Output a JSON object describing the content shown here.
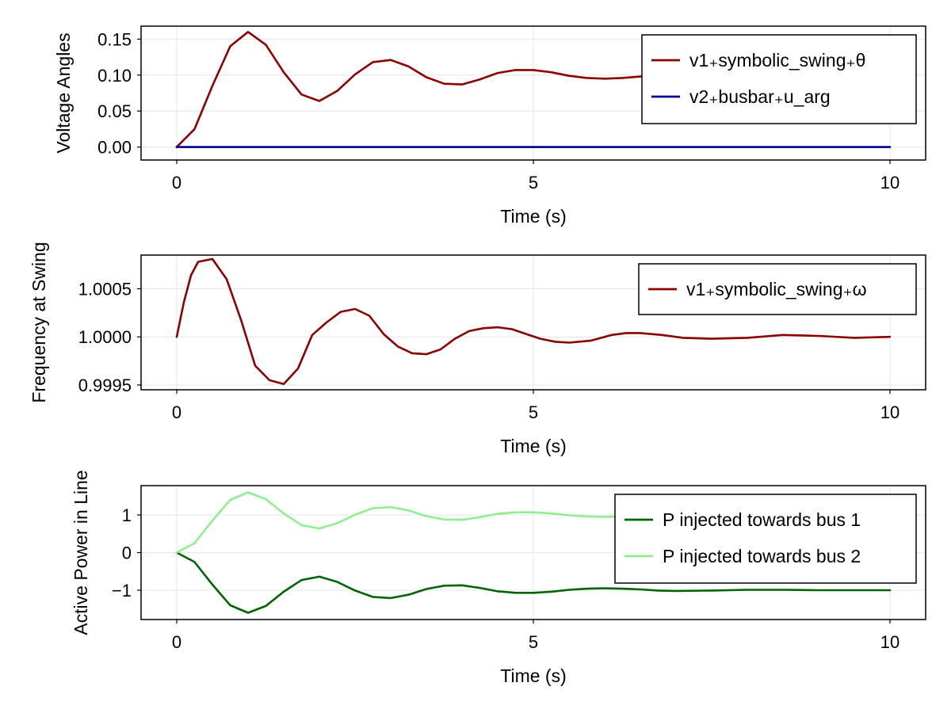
{
  "chart_data": [
    {
      "type": "line",
      "xlabel": "Time (s)",
      "ylabel": "Voltage Angles",
      "xlim": [
        -0.5,
        10.5
      ],
      "ylim": [
        -0.018,
        0.168
      ],
      "xticks": [
        0,
        5,
        10
      ],
      "xtick_labels": [
        "0",
        "5",
        "10"
      ],
      "yticks": [
        0.0,
        0.05,
        0.1,
        0.15
      ],
      "ytick_labels": [
        "0.00",
        "0.05",
        "0.10",
        "0.15"
      ],
      "grid": true,
      "legend_position": "top-right",
      "series": [
        {
          "name": "v1₊symbolic_swing₊θ",
          "color": "#8b0000",
          "x": [
            0,
            0.25,
            0.5,
            0.75,
            1.0,
            1.25,
            1.5,
            1.75,
            2.0,
            2.25,
            2.5,
            2.75,
            3.0,
            3.25,
            3.5,
            3.75,
            4.0,
            4.25,
            4.5,
            4.75,
            5.0,
            5.25,
            5.5,
            5.75,
            6.0,
            6.25,
            6.5,
            6.75,
            7.0,
            7.5,
            8.0,
            8.5,
            9.0,
            9.5,
            10.0
          ],
          "y": [
            0.0,
            0.025,
            0.085,
            0.14,
            0.16,
            0.142,
            0.104,
            0.073,
            0.064,
            0.078,
            0.101,
            0.118,
            0.121,
            0.112,
            0.097,
            0.088,
            0.087,
            0.094,
            0.103,
            0.107,
            0.107,
            0.104,
            0.099,
            0.096,
            0.095,
            0.096,
            0.098,
            0.101,
            0.102,
            0.101,
            0.099,
            0.099,
            0.1,
            0.1,
            0.1
          ]
        },
        {
          "name": "v2₊busbar₊u_arg",
          "color": "#00008b",
          "x": [
            0,
            10
          ],
          "y": [
            0.0,
            0.0
          ]
        }
      ]
    },
    {
      "type": "line",
      "xlabel": "Time (s)",
      "ylabel": "Frequency at Swing",
      "xlim": [
        -0.5,
        10.5
      ],
      "ylim": [
        0.99945,
        1.00085
      ],
      "xticks": [
        0,
        5,
        10
      ],
      "xtick_labels": [
        "0",
        "5",
        "10"
      ],
      "yticks": [
        0.9995,
        1.0,
        1.0005
      ],
      "ytick_labels": [
        "0.9995",
        "1.0000",
        "1.0005"
      ],
      "grid": true,
      "legend_position": "top-right",
      "series": [
        {
          "name": "v1₊symbolic_swing₊ω",
          "color": "#8b0000",
          "x": [
            0,
            0.1,
            0.2,
            0.3,
            0.5,
            0.7,
            0.9,
            1.1,
            1.3,
            1.5,
            1.7,
            1.9,
            2.1,
            2.3,
            2.5,
            2.7,
            2.9,
            3.1,
            3.3,
            3.5,
            3.7,
            3.9,
            4.1,
            4.3,
            4.5,
            4.7,
            4.9,
            5.1,
            5.3,
            5.5,
            5.8,
            6.1,
            6.3,
            6.5,
            6.8,
            7.1,
            7.5,
            8.0,
            8.5,
            9.0,
            9.5,
            10.0
          ],
          "y": [
            1.0,
            1.00036,
            1.00064,
            1.00078,
            1.00081,
            1.0006,
            1.00018,
            0.9997,
            0.99955,
            0.99951,
            0.99967,
            1.00002,
            1.00015,
            1.00026,
            1.00029,
            1.00022,
            1.00003,
            0.9999,
            0.99983,
            0.99982,
            0.99987,
            0.99998,
            1.00006,
            1.00009,
            1.0001,
            1.00008,
            1.00003,
            0.99998,
            0.99995,
            0.99994,
            0.99996,
            1.00002,
            1.00004,
            1.00004,
            1.00002,
            0.99999,
            0.99998,
            0.99999,
            1.00002,
            1.00001,
            0.99999,
            1.0
          ]
        }
      ]
    },
    {
      "type": "line",
      "xlabel": "Time (s)",
      "ylabel": "Active Power in Line",
      "xlim": [
        -0.5,
        10.5
      ],
      "ylim": [
        -1.78,
        1.78
      ],
      "xticks": [
        0,
        5,
        10
      ],
      "xtick_labels": [
        "0",
        "5",
        "10"
      ],
      "yticks": [
        -1,
        0,
        1
      ],
      "ytick_labels": [
        "−1",
        "0",
        "1"
      ],
      "grid": true,
      "legend_position": "top-right",
      "series": [
        {
          "name": "P injected towards bus 1",
          "color": "#006400",
          "x": [
            0,
            0.25,
            0.5,
            0.75,
            1.0,
            1.25,
            1.5,
            1.75,
            2.0,
            2.25,
            2.5,
            2.75,
            3.0,
            3.25,
            3.5,
            3.75,
            4.0,
            4.25,
            4.5,
            4.75,
            5.0,
            5.25,
            5.5,
            5.75,
            6.0,
            6.25,
            6.5,
            6.75,
            7.0,
            7.5,
            8.0,
            8.5,
            9.0,
            9.5,
            10.0
          ],
          "y": [
            0.0,
            -0.25,
            -0.85,
            -1.4,
            -1.6,
            -1.42,
            -1.04,
            -0.73,
            -0.64,
            -0.78,
            -1.01,
            -1.18,
            -1.21,
            -1.12,
            -0.97,
            -0.88,
            -0.87,
            -0.94,
            -1.03,
            -1.07,
            -1.07,
            -1.04,
            -0.99,
            -0.96,
            -0.95,
            -0.96,
            -0.98,
            -1.01,
            -1.02,
            -1.01,
            -0.99,
            -0.99,
            -1.0,
            -1.0,
            -1.0
          ]
        },
        {
          "name": "P injected towards bus 2",
          "color": "#90ee90",
          "x": [
            0,
            0.25,
            0.5,
            0.75,
            1.0,
            1.25,
            1.5,
            1.75,
            2.0,
            2.25,
            2.5,
            2.75,
            3.0,
            3.25,
            3.5,
            3.75,
            4.0,
            4.25,
            4.5,
            4.75,
            5.0,
            5.25,
            5.5,
            5.75,
            6.0,
            6.25,
            6.5,
            6.75,
            7.0,
            7.5,
            8.0,
            8.5,
            9.0,
            9.5,
            10.0
          ],
          "y": [
            0.0,
            0.25,
            0.85,
            1.4,
            1.6,
            1.42,
            1.04,
            0.73,
            0.64,
            0.78,
            1.01,
            1.18,
            1.21,
            1.12,
            0.97,
            0.88,
            0.87,
            0.94,
            1.03,
            1.07,
            1.07,
            1.04,
            0.99,
            0.96,
            0.95,
            0.96,
            0.98,
            1.01,
            1.02,
            1.01,
            0.99,
            0.99,
            1.0,
            1.0,
            1.0
          ]
        }
      ]
    }
  ]
}
